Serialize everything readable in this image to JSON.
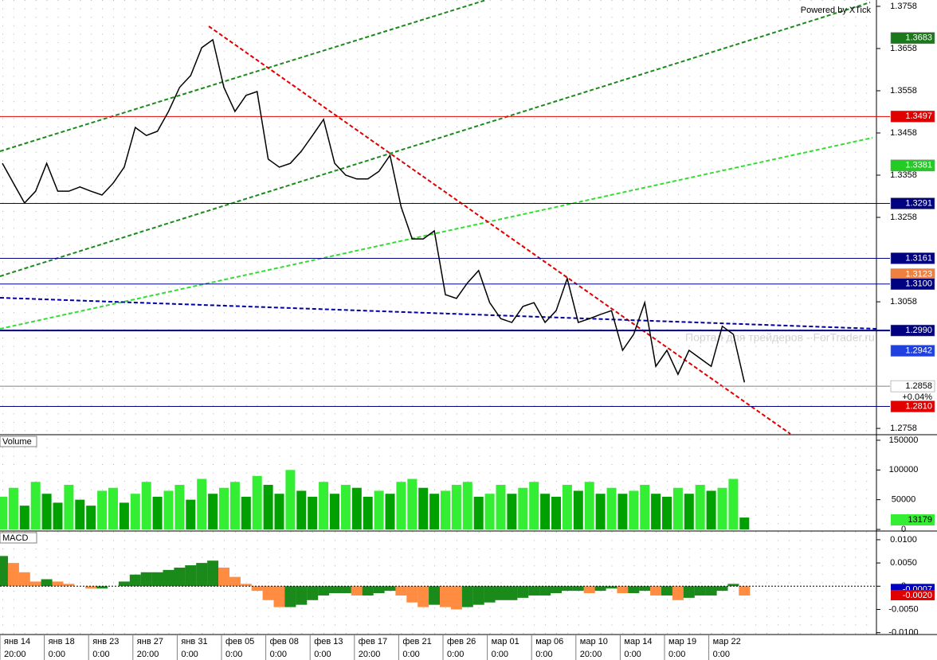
{
  "chart_data": [
    {
      "type": "line",
      "categories": [
        "янв 14",
        null,
        null,
        null,
        "янв 18",
        null,
        null,
        null,
        "янв 23",
        null,
        null,
        null,
        "янв 27",
        null,
        null,
        null,
        "янв 31",
        null,
        null,
        null,
        "фев 05",
        null,
        null,
        null,
        "фев 08",
        null,
        null,
        null,
        "фев 13",
        null,
        null,
        null,
        "фев 17",
        null,
        null,
        null,
        "фев 21",
        null,
        null,
        null,
        "фев 26",
        null,
        null,
        null,
        "мар 01",
        null,
        null,
        null,
        "мар 06",
        null,
        null,
        null,
        "мар 10",
        null,
        null,
        null,
        "мар 14",
        null,
        null,
        null,
        "мар 19",
        null,
        null,
        null,
        "мар 22",
        null,
        null,
        null
      ],
      "times": [
        "20:00",
        null,
        null,
        null,
        "0:00",
        null,
        null,
        null,
        "0:00",
        null,
        null,
        null,
        "20:00",
        null,
        null,
        null,
        "0:00",
        null,
        null,
        null,
        "0:00",
        null,
        null,
        null,
        "0:00",
        null,
        null,
        null,
        "0:00",
        null,
        null,
        null,
        "20:00",
        null,
        null,
        null,
        "0:00",
        null,
        null,
        null,
        "0:00",
        null,
        null,
        null,
        "0:00",
        null,
        null,
        null,
        "0:00",
        null,
        null,
        null,
        "20:00",
        null,
        null,
        null,
        "0:00",
        null,
        null,
        null,
        "0:00",
        null,
        null,
        null,
        "0:00",
        null,
        null,
        null
      ],
      "series": [
        {
          "color": "#000000",
          "values": [
            1.3386,
            1.3339,
            1.3292,
            1.332,
            1.3386,
            1.332,
            1.332,
            1.333,
            1.332,
            1.3311,
            1.3339,
            1.3377,
            1.3471,
            1.3452,
            1.3462,
            1.3509,
            1.3566,
            1.3594,
            1.366,
            1.3679,
            1.3566,
            1.3509,
            1.3547,
            1.3556,
            1.3396,
            1.3377,
            1.3386,
            1.3415,
            1.3452,
            1.349,
            1.3386,
            1.3358,
            1.3349,
            1.3349,
            1.3367,
            1.3405,
            1.3283,
            1.3207,
            1.3207,
            1.3226,
            1.3075,
            1.3066,
            1.3103,
            1.3132,
            1.3056,
            1.3018,
            1.3009,
            1.3047,
            1.3056,
            1.3009,
            1.3037,
            1.3113,
            1.3009,
            1.3018,
            1.3028,
            1.3037,
            1.2943,
            1.2981,
            1.3056,
            1.2905,
            1.2943,
            1.2886,
            1.2943,
            1.2924,
            1.2905,
            1.3,
            1.2981,
            1.2867
          ]
        }
      ],
      "ylim": [
        1.2745,
        1.3773
      ],
      "yticks": [
        1.2758,
        1.3058,
        1.3258,
        1.3358,
        1.3458,
        1.3558,
        1.3658,
        1.3758
      ],
      "levels": [
        {
          "value": 1.3683,
          "label": "1.3683",
          "color": "#1a7a1a",
          "text_color": "#ffffff",
          "line": null
        },
        {
          "value": 1.3497,
          "label": "1.3497",
          "color": "#e00000",
          "text_color": "#ffffff",
          "line": "#e00000"
        },
        {
          "value": 1.3381,
          "label": "1.3381",
          "color": "#22cc22",
          "text_color": "#ffffff",
          "line": null
        },
        {
          "value": 1.3291,
          "label": "1.3291",
          "color": "#000080",
          "text_color": "#ffffff",
          "line": "#000080"
        },
        {
          "value": 1.3161,
          "label": "1.3161",
          "color": "#000080",
          "text_color": "#ffffff",
          "line": "#000080"
        },
        {
          "value": 1.3123,
          "label": "1.3123",
          "color": "#f08040",
          "text_color": "#ffffff",
          "line": null
        },
        {
          "value": 1.31,
          "label": "1.3100",
          "color": "#000080",
          "text_color": "#ffffff",
          "line": "#000080"
        },
        {
          "value": 1.299,
          "label": "1.2990",
          "color": "#000080",
          "text_color": "#ffffff",
          "line": "#000080"
        },
        {
          "value": 1.2942,
          "label": "1.2942",
          "color": "#2040e0",
          "text_color": "#ffffff",
          "line": null
        },
        {
          "value": 1.2858,
          "label": "1.2858",
          "color": "#ffffff",
          "text_color": "#000000",
          "line": "#808080"
        },
        {
          "value": 1.281,
          "label": "1.2810",
          "color": "#e00000",
          "text_color": "#ffffff",
          "line": "#000080"
        }
      ],
      "change_label": "+0.04%",
      "annotations": [
        "Powered by XTick",
        "Портал для трейдеров - ForTrader.ru"
      ]
    },
    {
      "type": "bar",
      "title": "Volume",
      "values": [
        55000,
        70000,
        40000,
        80000,
        60000,
        45000,
        75000,
        50000,
        40000,
        65000,
        70000,
        45000,
        60000,
        80000,
        55000,
        65000,
        75000,
        50000,
        85000,
        60000,
        70000,
        80000,
        55000,
        90000,
        75000,
        60000,
        100000,
        65000,
        55000,
        80000,
        60000,
        75000,
        70000,
        55000,
        65000,
        60000,
        80000,
        85000,
        70000,
        60000,
        65000,
        75000,
        80000,
        55000,
        60000,
        75000,
        60000,
        70000,
        80000,
        60000,
        55000,
        75000,
        65000,
        80000,
        60000,
        70000,
        60000,
        65000,
        75000,
        60000,
        55000,
        70000,
        60000,
        75000,
        65000,
        70000,
        85000,
        20000
      ],
      "ylim": [
        0,
        158000
      ],
      "yticks": [
        0,
        50000,
        100000,
        150000
      ],
      "colors": {
        "up": "#33ee33",
        "down": "#00a000"
      },
      "current_label": "13179"
    },
    {
      "type": "macd",
      "title": "MACD",
      "values": [
        0.0065,
        0.005,
        0.003,
        0.001,
        0.0015,
        0.001,
        0.0005,
        0,
        -0.0005,
        -0.0005,
        0,
        0.001,
        0.0025,
        0.003,
        0.003,
        0.0035,
        0.004,
        0.0045,
        0.005,
        0.0055,
        0.004,
        0.002,
        0.0005,
        -0.001,
        -0.003,
        -0.0045,
        -0.0045,
        -0.004,
        -0.003,
        -0.002,
        -0.0015,
        -0.0015,
        -0.002,
        -0.002,
        -0.0015,
        -0.001,
        -0.002,
        -0.0035,
        -0.0045,
        -0.004,
        -0.0045,
        -0.005,
        -0.0045,
        -0.004,
        -0.0035,
        -0.003,
        -0.003,
        -0.0025,
        -0.002,
        -0.002,
        -0.0015,
        -0.001,
        -0.001,
        -0.0015,
        -0.001,
        -0.0005,
        -0.0015,
        -0.0015,
        -0.001,
        -0.002,
        -0.002,
        -0.003,
        -0.0025,
        -0.002,
        -0.002,
        -0.001,
        0.0005,
        -0.002
      ],
      "ylim": [
        -0.0104,
        0.0117
      ],
      "yticks": [
        {
          "value": -0.01,
          "label": "-0.0100"
        },
        {
          "value": -0.005,
          "label": "-0.0050"
        },
        0,
        {
          "value": 0.005,
          "label": "0.0050"
        },
        {
          "value": 0.01,
          "label": "0.0100"
        }
      ],
      "colors": {
        "up": "#1a8a1a",
        "down": "#ff8c40"
      },
      "levels": [
        {
          "value": -0.0007,
          "label": "-0.0007",
          "color": "#0000c0"
        },
        {
          "value": -0.002,
          "label": "-0.0020",
          "color": "#e00000"
        }
      ]
    }
  ]
}
